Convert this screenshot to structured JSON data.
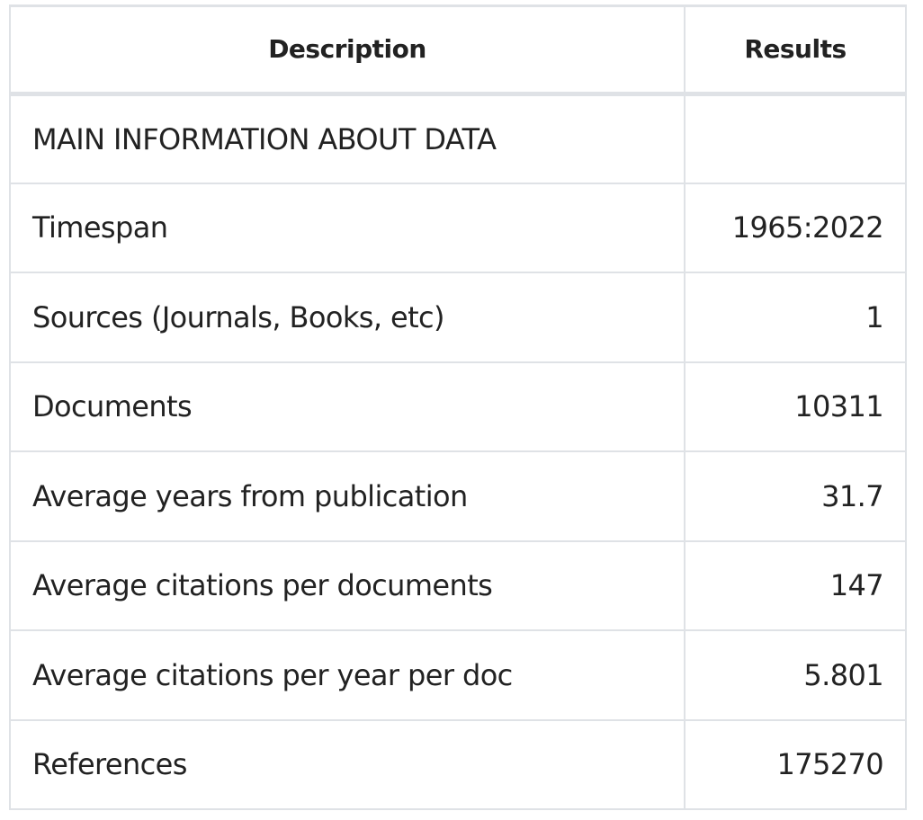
{
  "table": {
    "headers": {
      "description": "Description",
      "results": "Results"
    },
    "rows": [
      {
        "description": "MAIN INFORMATION ABOUT DATA",
        "result": ""
      },
      {
        "description": "Timespan",
        "result": "1965:2022"
      },
      {
        "description": "Sources (Journals, Books, etc)",
        "result": "1"
      },
      {
        "description": "Documents",
        "result": "10311"
      },
      {
        "description": "Average years from publication",
        "result": "31.7"
      },
      {
        "description": "Average citations per documents",
        "result": "147"
      },
      {
        "description": "Average citations per year per doc",
        "result": "5.801"
      },
      {
        "description": "References",
        "result": "175270"
      }
    ]
  },
  "colors": {
    "border": "#dfe2e6",
    "text": "#222222",
    "background": "#ffffff"
  }
}
